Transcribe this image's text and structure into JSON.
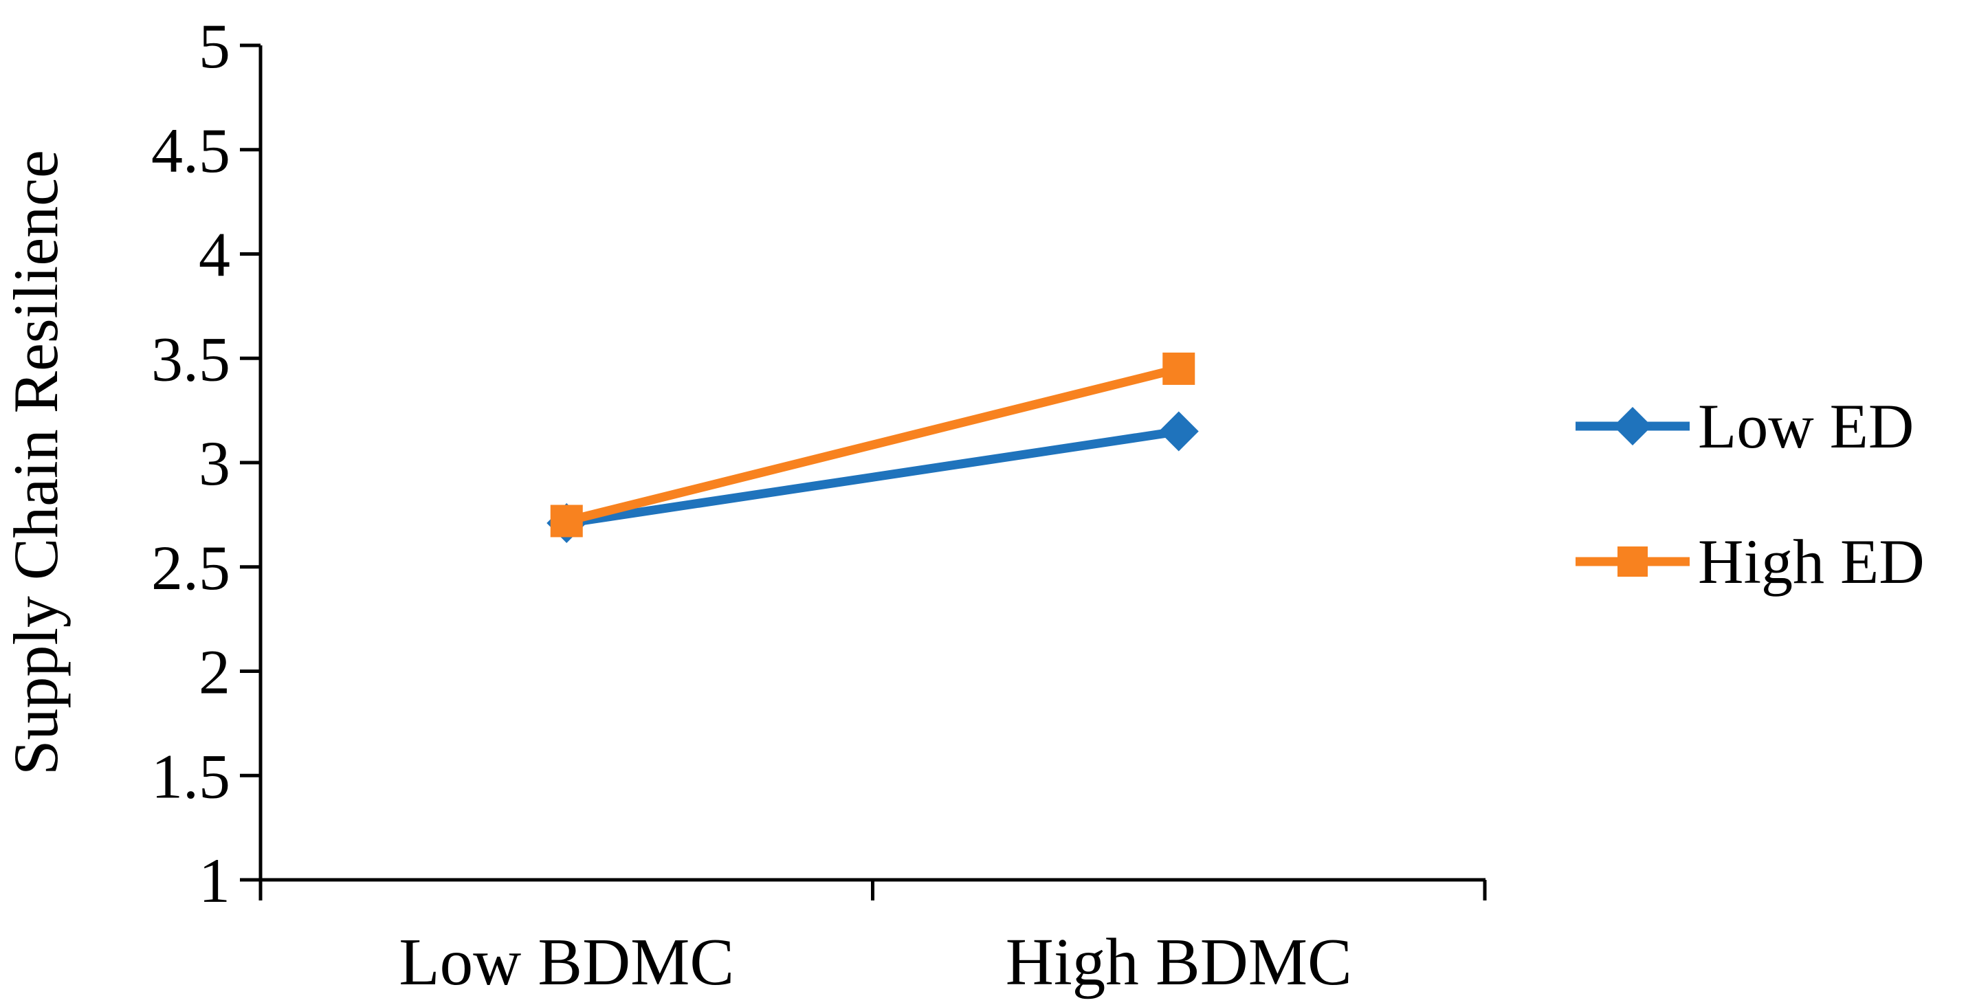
{
  "chart_data": {
    "type": "line",
    "title": "",
    "xlabel": "",
    "ylabel": "Supply Chain Resilience",
    "categories": [
      "Low BDMC",
      "High BDMC"
    ],
    "series": [
      {
        "name": "Low ED",
        "color": "#1f73bc",
        "marker": "diamond",
        "values": [
          2.71,
          3.15
        ]
      },
      {
        "name": "High ED",
        "color": "#f8821f",
        "marker": "square",
        "values": [
          2.72,
          3.45
        ]
      }
    ],
    "ylim": [
      1,
      5
    ],
    "ytick_step": 0.5,
    "yticks": [
      1,
      1.5,
      2,
      2.5,
      3,
      3.5,
      4,
      4.5,
      5
    ],
    "grid": false,
    "legend_position": "right",
    "axis_color": "#000000",
    "background_color": "#ffffff"
  }
}
